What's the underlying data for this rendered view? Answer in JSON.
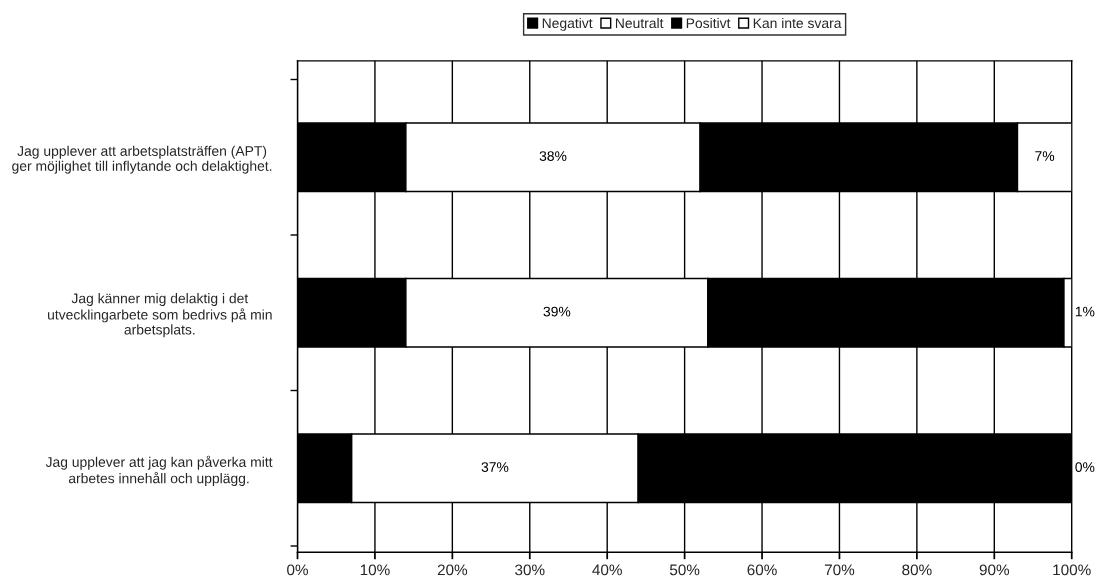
{
  "chart_data": {
    "type": "bar",
    "orientation": "horizontal",
    "stacked": true,
    "categories": [
      "Jag upplever att arbetsplatsträffen (APT) ger möjlighet till inflytande och delaktighet.",
      "Jag känner mig delaktig i det utvecklingarbete som bedrivs på min arbetsplats.",
      "Jag upplever att jag kan påverka mitt arbetes innehåll och upplägg."
    ],
    "series": [
      {
        "name": "Negativt",
        "color": "#000000",
        "values": [
          14,
          14,
          7
        ]
      },
      {
        "name": "Neutralt",
        "color": "#ffffff",
        "values": [
          38,
          39,
          37
        ],
        "value_labels": [
          "38%",
          "39%",
          "37%"
        ]
      },
      {
        "name": "Positivt",
        "color": "#000000",
        "values": [
          41,
          46,
          56
        ]
      },
      {
        "name": "Kan inte svara",
        "color": "#ffffff",
        "values": [
          7,
          1,
          0
        ],
        "value_labels": [
          "7%",
          "1%",
          "0%"
        ]
      }
    ],
    "xlim": [
      0,
      100
    ],
    "xticks": [
      {
        "value": 0,
        "label": "0%"
      },
      {
        "value": 10,
        "label": "10%"
      },
      {
        "value": 20,
        "label": "20%"
      },
      {
        "value": 30,
        "label": "30%"
      },
      {
        "value": 40,
        "label": "40%"
      },
      {
        "value": 50,
        "label": "50%"
      },
      {
        "value": 60,
        "label": "60%"
      },
      {
        "value": 70,
        "label": "70%"
      },
      {
        "value": 80,
        "label": "80%"
      },
      {
        "value": 90,
        "label": "90%"
      },
      {
        "value": 100,
        "label": "100%"
      }
    ],
    "grid": "x",
    "legend": "top"
  }
}
